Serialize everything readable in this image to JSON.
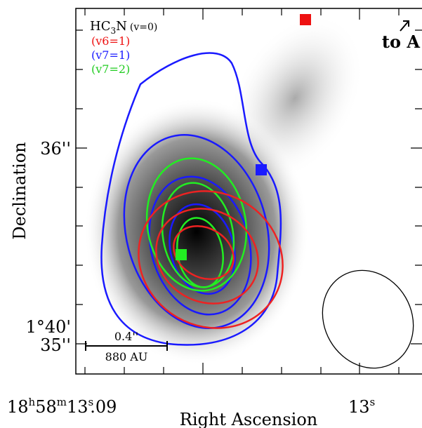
{
  "figure": {
    "xlabel": "Right Ascension",
    "ylabel": "Declination",
    "xticks": [
      [
        "18",
        "h",
        "58",
        "m",
        "13",
        "s",
        ".09"
      ],
      [
        "13",
        "s"
      ]
    ],
    "yticks": [
      [
        "36''"
      ],
      [
        "1°40'",
        "35''"
      ]
    ],
    "legend": [
      [
        "HC",
        "3",
        "N",
        "(v=0)"
      ],
      [
        "(v6=1)"
      ],
      [
        "(v7=1)"
      ],
      [
        "(v7=2)"
      ]
    ],
    "scale_bar": {
      "angular": "0.4''",
      "linear": "880 AU"
    },
    "annotation": "to A"
  }
}
